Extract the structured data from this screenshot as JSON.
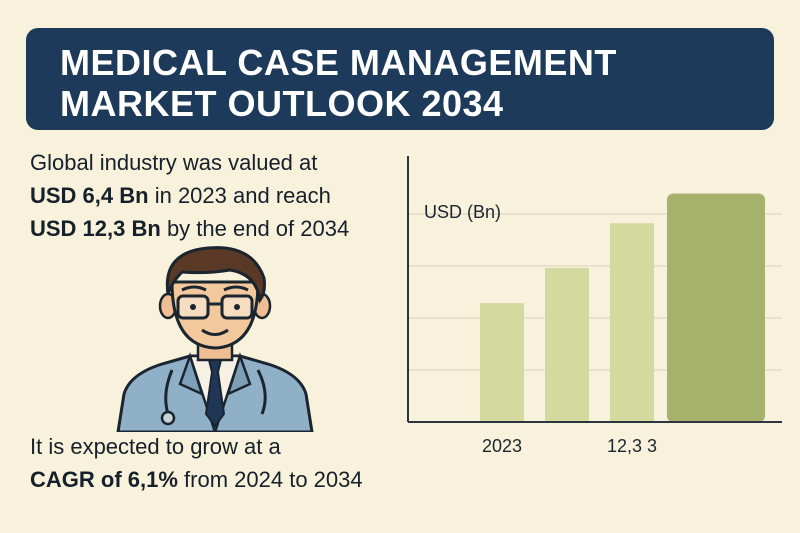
{
  "header": {
    "title_line1": "MEDICAL CASE MANAGEMENT",
    "title_line2": "MARKET OUTLOOK 2034"
  },
  "intro": {
    "line1": "Global industry was valued at",
    "line2_bold": "USD 6,4 Bn",
    "line2_rest": " in 2023 and reach",
    "line3_bold": "USD 12,3 Bn",
    "line3_rest": " by the end of 2034"
  },
  "outro": {
    "line1": "It is expected to grow at a",
    "line2_bold": "CAGR of 6,1%",
    "line2_rest": " from 2024 to 2034"
  },
  "colors": {
    "banner": "#1d3a5a",
    "background": "#f8f2dc",
    "bar_light": "#d4d9a0",
    "bar_dark": "#a6b26b"
  },
  "illustration": {
    "subject": "doctor-avatar"
  },
  "chart_data": {
    "type": "bar",
    "ylabel": "USD (Bn)",
    "categories": [
      "2023",
      "",
      "12,3 3",
      ""
    ],
    "values": [
      6.4,
      8.3,
      10.7,
      12.3
    ],
    "ylim": [
      0,
      14
    ],
    "grid": true
  }
}
